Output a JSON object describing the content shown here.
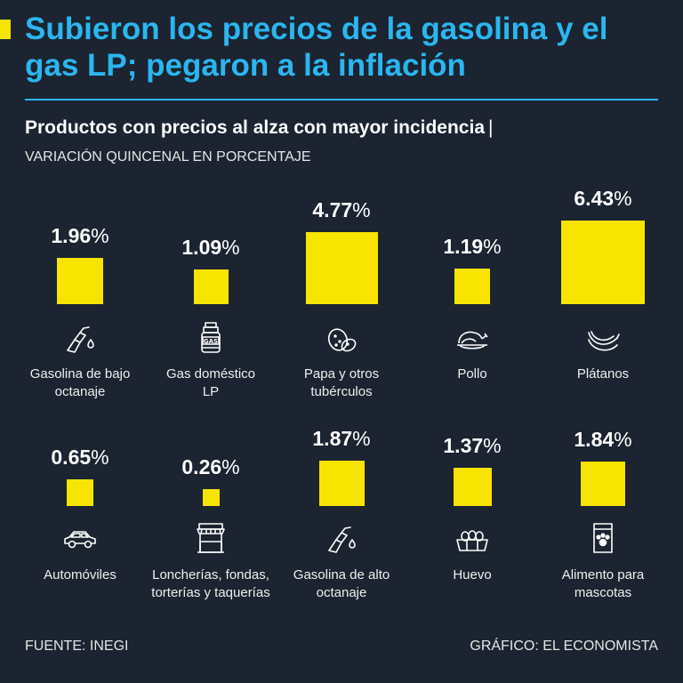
{
  "header": {
    "title": "Subieron los precios de la gasolina y el gas LP; pegaron a la inflación",
    "subtitle": "Productos con precios al alza con mayor incidencia",
    "separator": "|",
    "unit_label": "VARIACIÓN QUINCENAL EN PORCENTAJE"
  },
  "footer": {
    "source": "FUENTE: INEGI",
    "credit": "GRÁFICO: EL ECONOMISTA"
  },
  "colors": {
    "background": "#1b2430",
    "title": "#2bb6f0",
    "square": "#f7e400"
  },
  "chart_data": {
    "type": "bar",
    "title": "Productos con precios al alza con mayor incidencia",
    "ylabel": "Variación quincenal en porcentaje",
    "unit": "%",
    "categories": [
      "Gasolina de bajo octanaje",
      "Gas doméstico LP",
      "Papa y otros tubérculos",
      "Pollo",
      "Plátanos",
      "Automóviles",
      "Loncherías, fondas, torterías y taquerías",
      "Gasolina de alto octanaje",
      "Huevo",
      "Alimento para mascotas"
    ],
    "values": [
      1.96,
      1.09,
      4.77,
      1.19,
      6.43,
      0.65,
      0.26,
      1.87,
      1.37,
      1.84
    ],
    "items": [
      {
        "label_lines": [
          "Gasolina de bajo",
          "octanaje"
        ],
        "value": 1.96,
        "value_text": "1.96",
        "icon": "fuel-pump-icon"
      },
      {
        "label_lines": [
          "Gas doméstico",
          "LP"
        ],
        "value": 1.09,
        "value_text": "1.09",
        "icon": "gas-cylinder-icon"
      },
      {
        "label_lines": [
          "Papa y otros",
          "tubérculos"
        ],
        "value": 4.77,
        "value_text": "4.77",
        "icon": "potato-icon"
      },
      {
        "label_lines": [
          "Pollo"
        ],
        "value": 1.19,
        "value_text": "1.19",
        "icon": "roast-chicken-icon"
      },
      {
        "label_lines": [
          "Plátanos"
        ],
        "value": 6.43,
        "value_text": "6.43",
        "icon": "bananas-icon"
      },
      {
        "label_lines": [
          "Automóviles"
        ],
        "value": 0.65,
        "value_text": "0.65",
        "icon": "car-icon"
      },
      {
        "label_lines": [
          "Loncherías, fondas,",
          "torterías y taquerías"
        ],
        "value": 0.26,
        "value_text": "0.26",
        "icon": "food-stall-icon"
      },
      {
        "label_lines": [
          "Gasolina de alto",
          "octanaje"
        ],
        "value": 1.87,
        "value_text": "1.87",
        "icon": "fuel-pump-icon"
      },
      {
        "label_lines": [
          "Huevo"
        ],
        "value": 1.37,
        "value_text": "1.37",
        "icon": "egg-carton-icon"
      },
      {
        "label_lines": [
          "Alimento para",
          "mascotas"
        ],
        "value": 1.84,
        "value_text": "1.84",
        "icon": "pet-food-bag-icon"
      }
    ],
    "percent_sign": "%",
    "encoding": "square area proportional to value"
  }
}
